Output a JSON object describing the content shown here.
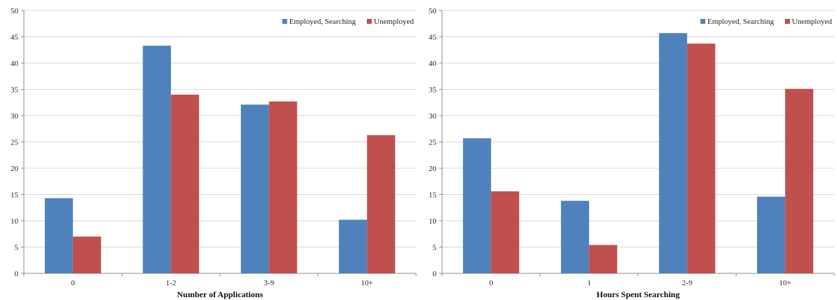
{
  "colors": {
    "series1": "#4F81BD",
    "series2": "#C0504D",
    "grid": "#d9d9d9",
    "axis": "#888888"
  },
  "chart_data": [
    {
      "type": "bar",
      "title": "",
      "xlabel": "Number of Applications",
      "ylabel": "",
      "ylim": [
        0,
        50
      ],
      "yticks": [
        0,
        5,
        10,
        15,
        20,
        25,
        30,
        35,
        40,
        45,
        50
      ],
      "grid": true,
      "legend_position": "top-right",
      "categories": [
        "0",
        "1-2",
        "3-9",
        "10+"
      ],
      "series": [
        {
          "name": "Employed, Searching",
          "values": [
            14.3,
            43.3,
            32.1,
            10.2
          ]
        },
        {
          "name": "Unemployed",
          "values": [
            7.0,
            34.0,
            32.7,
            26.3
          ]
        }
      ]
    },
    {
      "type": "bar",
      "title": "",
      "xlabel": "Hours Spent Searching",
      "ylabel": "",
      "ylim": [
        0,
        50
      ],
      "yticks": [
        0,
        5,
        10,
        15,
        20,
        25,
        30,
        35,
        40,
        45,
        50
      ],
      "grid": true,
      "legend_position": "top-right",
      "categories": [
        "0",
        "1",
        "2-9",
        "10+"
      ],
      "series": [
        {
          "name": "Employed, Searching",
          "values": [
            25.7,
            13.8,
            45.7,
            14.6
          ]
        },
        {
          "name": "Unemployed",
          "values": [
            15.6,
            5.4,
            43.7,
            35.1
          ]
        }
      ]
    }
  ]
}
